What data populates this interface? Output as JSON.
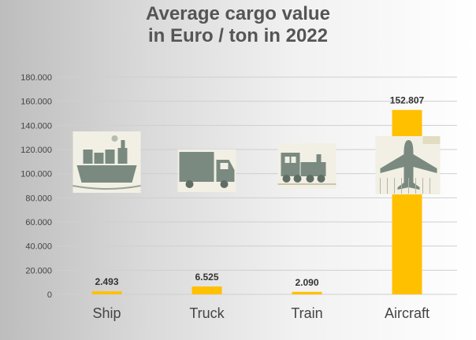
{
  "chart_data": {
    "type": "bar",
    "title_line1": "Average cargo value",
    "title_line2": "in Euro / ton in 2022",
    "categories": [
      "Ship",
      "Truck",
      "Train",
      "Aircraft"
    ],
    "values": [
      2493,
      6525,
      2090,
      152807
    ],
    "value_labels": [
      "2.493",
      "6.525",
      "2.090",
      "152.807"
    ],
    "icons": [
      "cargo-ship-icon",
      "truck-icon",
      "train-icon",
      "aircraft-icon"
    ],
    "yticks": [
      0,
      20000,
      40000,
      60000,
      80000,
      100000,
      120000,
      140000,
      160000,
      180000
    ],
    "ytick_labels": [
      "0",
      "20.000",
      "40.000",
      "60.000",
      "80.000",
      "100.000",
      "120.000",
      "140.000",
      "160.000",
      "180.000"
    ],
    "ylim": [
      0,
      180000
    ],
    "grid": true,
    "bar_color": "#ffc000",
    "xlabel": "",
    "ylabel": ""
  }
}
